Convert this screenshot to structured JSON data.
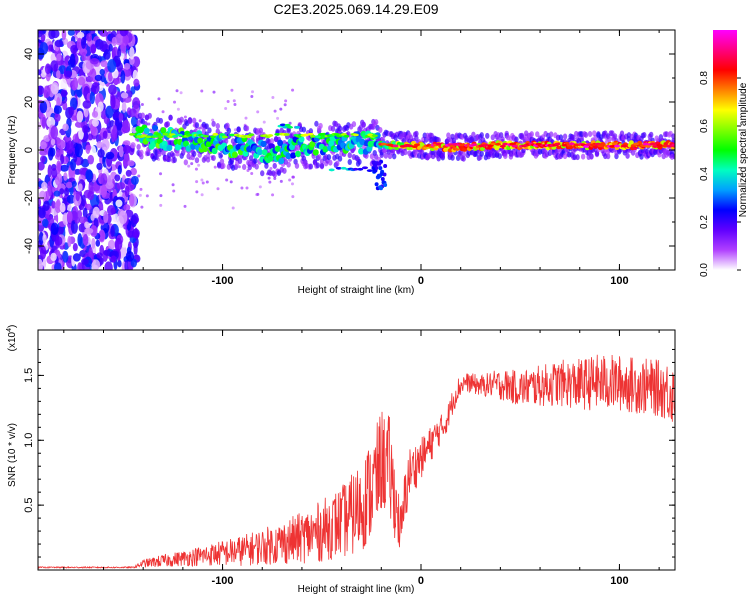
{
  "chart_data": [
    {
      "type": "heatmap",
      "title": "C2E3.2025.069.14.29.E09",
      "xlabel": "Height of straight line (km)",
      "ylabel": "Frequency (Hz)",
      "xlim": [
        -193,
        128
      ],
      "ylim": [
        -50,
        50
      ],
      "xticks": [
        -100,
        0,
        100
      ],
      "xtick_labels": [
        "-100",
        "0",
        "100"
      ],
      "yticks": [
        -40,
        -20,
        0,
        20,
        40
      ],
      "ytick_labels": [
        "-40",
        "-20",
        "0",
        "20",
        "40"
      ],
      "colorbar": {
        "label": "Normalized spectral amplitude",
        "range": [
          0,
          1
        ],
        "ticks": [
          0.0,
          0.2,
          0.4,
          0.6,
          0.8
        ],
        "tick_labels": [
          "0.0",
          "0.2",
          "0.4",
          "0.6",
          "0.8"
        ],
        "colors": [
          "#ffffff",
          "#b040ff",
          "#6000ff",
          "#0000ff",
          "#00a0ff",
          "#00ffc0",
          "#00ff00",
          "#80ff00",
          "#ffff00",
          "#ff8000",
          "#ff0000",
          "#ff0080",
          "#ff00ff"
        ]
      },
      "noise_region_x": [
        -193,
        -143
      ],
      "band": [
        {
          "x": -143,
          "f": 6,
          "amp": 0.4
        },
        {
          "x": -130,
          "f": 5,
          "amp": 0.45
        },
        {
          "x": -110,
          "f": 3,
          "amp": 0.4
        },
        {
          "x": -90,
          "f": 1,
          "amp": 0.4
        },
        {
          "x": -75,
          "f": -2,
          "amp": 0.35
        },
        {
          "x": -62,
          "f": 2,
          "amp": 0.4
        },
        {
          "x": -50,
          "f": 2,
          "amp": 0.4
        },
        {
          "x": -35,
          "f": 3,
          "amp": 0.4
        },
        {
          "x": -22,
          "f": 3,
          "amp": 0.4
        },
        {
          "x": -15,
          "f": 2,
          "amp": 0.5
        },
        {
          "x": 0,
          "f": 2,
          "amp": 0.7
        },
        {
          "x": 15,
          "f": 1,
          "amp": 0.75
        },
        {
          "x": 40,
          "f": 2,
          "amp": 0.7
        },
        {
          "x": 70,
          "f": 2,
          "amp": 0.72
        },
        {
          "x": 100,
          "f": 2,
          "amp": 0.75
        },
        {
          "x": 128,
          "f": 2,
          "amp": 0.75
        }
      ],
      "streaks": [
        {
          "x1": -148,
          "x2": -22,
          "f": 6,
          "amp": 0.55
        },
        {
          "x1": -20,
          "x2": 128,
          "f": 2,
          "amp": 0.88
        },
        {
          "x1": -72,
          "x2": -60,
          "f": 10,
          "amp": 0.35
        },
        {
          "x1": -45,
          "x2": -25,
          "f": -8,
          "amp": 0.3
        }
      ],
      "colors": {
        "axis": "#000000"
      }
    },
    {
      "type": "line",
      "xlabel": "Height of straight line (km)",
      "ylabel": "SNR (10 * v/v)",
      "y_scale_label": "(x10",
      "y_scale_exponent": "4",
      "y_scale_close": ")",
      "xlim": [
        -193,
        128
      ],
      "ylim": [
        0,
        1.85
      ],
      "xticks": [
        -100,
        0,
        100
      ],
      "xtick_labels": [
        "-100",
        "0",
        "100"
      ],
      "yticks": [
        0.5,
        1.0,
        1.5
      ],
      "ytick_labels": [
        "0.5",
        "1.0",
        "1.5"
      ],
      "series": [
        {
          "name": "SNR",
          "color": "#ee3333",
          "x": [
            -193,
            -180,
            -160,
            -145,
            -140,
            -130,
            -120,
            -110,
            -100,
            -90,
            -80,
            -70,
            -60,
            -50,
            -45,
            -40,
            -35,
            -30,
            -25,
            -22,
            -20,
            -18,
            -16,
            -14,
            -12,
            -10,
            -8,
            -6,
            -4,
            -2,
            0,
            2,
            4,
            6,
            8,
            10,
            12,
            14,
            16,
            18,
            20,
            22,
            25,
            30,
            35,
            40,
            50,
            60,
            70,
            80,
            90,
            100,
            110,
            120,
            125,
            128
          ],
          "y": [
            0.02,
            0.02,
            0.02,
            0.02,
            0.05,
            0.07,
            0.09,
            0.11,
            0.13,
            0.15,
            0.18,
            0.21,
            0.25,
            0.3,
            0.34,
            0.37,
            0.42,
            0.5,
            0.62,
            0.72,
            0.85,
            0.82,
            0.78,
            0.62,
            0.45,
            0.28,
            0.55,
            0.75,
            0.78,
            0.82,
            0.86,
            0.9,
            0.95,
            1.0,
            1.05,
            1.08,
            1.12,
            1.2,
            1.3,
            1.38,
            1.42,
            1.45,
            1.44,
            1.42,
            1.43,
            1.43,
            1.4,
            1.42,
            1.44,
            1.43,
            1.45,
            1.44,
            1.42,
            1.4,
            1.38,
            1.35
          ],
          "noise": [
            0.005,
            0.005,
            0.005,
            0.005,
            0.03,
            0.05,
            0.06,
            0.08,
            0.1,
            0.12,
            0.14,
            0.17,
            0.2,
            0.24,
            0.26,
            0.28,
            0.32,
            0.36,
            0.4,
            0.42,
            0.4,
            0.4,
            0.42,
            0.35,
            0.25,
            0.2,
            0.25,
            0.2,
            0.18,
            0.18,
            0.16,
            0.15,
            0.14,
            0.14,
            0.12,
            0.12,
            0.1,
            0.1,
            0.1,
            0.1,
            0.08,
            0.07,
            0.08,
            0.08,
            0.1,
            0.12,
            0.14,
            0.16,
            0.18,
            0.2,
            0.22,
            0.22,
            0.22,
            0.22,
            0.24,
            0.24
          ]
        }
      ],
      "colors": {
        "axis": "#000000"
      }
    }
  ]
}
